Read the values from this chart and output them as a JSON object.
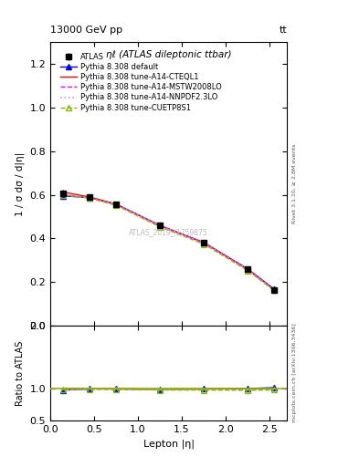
{
  "title_top": "13000 GeV pp",
  "title_top_right": "tt",
  "plot_title": "ηℓ (ATLAS dileptonic ttbar)",
  "watermark": "ATLAS_2019_I1759875",
  "right_label_top": "Rivet 3.1.10, ≥ 2.8M events",
  "right_label_bottom": "mcplots.cern.ch [arXiv:1306.3436]",
  "xlabel": "Lepton |η|",
  "ylabel": "1 / σ dσ / d|η|",
  "ylabel_ratio": "Ratio to ATLAS",
  "xlim": [
    0,
    2.7
  ],
  "ylim_main": [
    0,
    1.3
  ],
  "ylim_ratio": [
    0.5,
    2.0
  ],
  "x_data": [
    0.15,
    0.45,
    0.75,
    1.25,
    1.75,
    2.25,
    2.55
  ],
  "atlas_y": [
    0.608,
    0.588,
    0.558,
    0.462,
    0.382,
    0.259,
    0.165
  ],
  "atlas_yerr": [
    0.015,
    0.01,
    0.01,
    0.008,
    0.01,
    0.01,
    0.015
  ],
  "pythia_default_y": [
    0.595,
    0.587,
    0.557,
    0.459,
    0.381,
    0.26,
    0.168
  ],
  "pythia_cteql1_y": [
    0.612,
    0.59,
    0.557,
    0.459,
    0.381,
    0.259,
    0.165
  ],
  "pythia_mstw_y": [
    0.6,
    0.586,
    0.556,
    0.458,
    0.379,
    0.257,
    0.164
  ],
  "pythia_nnpdf_y": [
    0.6,
    0.586,
    0.556,
    0.458,
    0.379,
    0.257,
    0.164
  ],
  "pythia_cuetp_y": [
    0.6,
    0.584,
    0.552,
    0.453,
    0.374,
    0.253,
    0.162
  ],
  "color_atlas": "#000000",
  "color_default": "#0000ff",
  "color_cteql1": "#ff0000",
  "color_mstw": "#ff00ff",
  "color_nnpdf": "#dd88dd",
  "color_cuetp": "#88bb00",
  "legend_labels": [
    "ATLAS",
    "Pythia 8.308 default",
    "Pythia 8.308 tune-A14-CTEQL1",
    "Pythia 8.308 tune-A14-MSTW2008LO",
    "Pythia 8.308 tune-A14-NNPDF2.3LO",
    "Pythia 8.308 tune-CUETP8S1"
  ]
}
